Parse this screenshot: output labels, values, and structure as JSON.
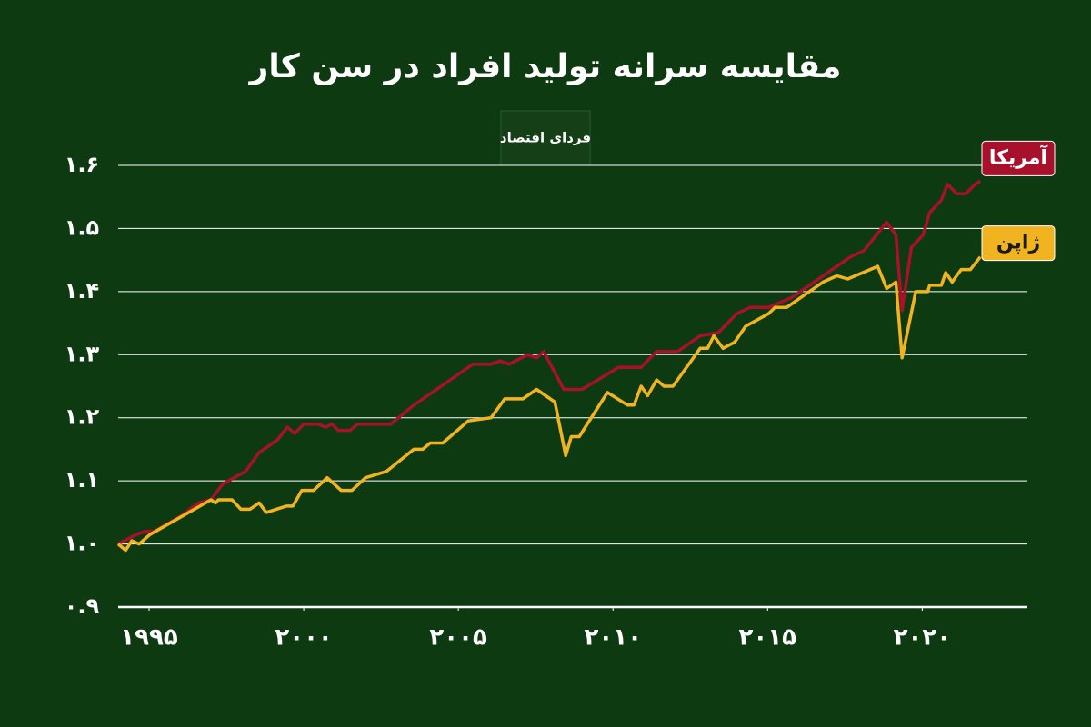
{
  "chart_data": {
    "type": "line",
    "title": "مقایسه سرانه تولید افراد در سن کار",
    "logo": "فردای اقتصاد",
    "xlim": [
      1994,
      2023.4
    ],
    "xticks": [
      {
        "value": 1995,
        "label": "۱۹۹۵"
      },
      {
        "value": 2000,
        "label": "۲۰۰۰"
      },
      {
        "value": 2005,
        "label": "۲۰۰۵"
      },
      {
        "value": 2010,
        "label": "۲۰۱۰"
      },
      {
        "value": 2015,
        "label": "۲۰۱۵"
      },
      {
        "value": 2020,
        "label": "۲۰۲۰"
      }
    ],
    "ylim": [
      0.9,
      1.6
    ],
    "yticks": [
      {
        "value": 0.9,
        "label": "۰.۹"
      },
      {
        "value": 1.0,
        "label": "۱.۰"
      },
      {
        "value": 1.1,
        "label": "۱.۱"
      },
      {
        "value": 1.2,
        "label": "۱.۲"
      },
      {
        "value": 1.3,
        "label": "۱.۳"
      },
      {
        "value": 1.4,
        "label": "۱.۴"
      },
      {
        "value": 1.5,
        "label": "۱.۵"
      },
      {
        "value": 1.6,
        "label": "۱.۶"
      }
    ],
    "grid": true,
    "series": [
      {
        "name": "آمریکا",
        "color": "#a8112b",
        "x": [
          1994.0,
          1994.59,
          1994.88,
          1995.18,
          1996.06,
          1996.59,
          1997.0,
          1997.38,
          1998.12,
          1998.56,
          1999.15,
          1999.47,
          1999.71,
          2000.0,
          2000.47,
          2000.71,
          2000.91,
          2001.12,
          2001.5,
          2001.74,
          2002.82,
          2003.56,
          2004.74,
          2005.47,
          2006.06,
          2006.35,
          2006.65,
          2007.24,
          2007.53,
          2007.76,
          2008.41,
          2009.0,
          2010.18,
          2010.91,
          2011.41,
          2012.09,
          2012.38,
          2012.82,
          2013.41,
          2014.0,
          2014.44,
          2015.03,
          2015.76,
          2016.65,
          2017.09,
          2017.68,
          2018.12,
          2018.85,
          2019.15,
          2019.35,
          2019.65,
          2020.03,
          2020.24,
          2020.62,
          2020.82,
          2021.12,
          2021.41,
          2021.71,
          2021.88
        ],
        "values": [
          1.0,
          1.015,
          1.02,
          1.02,
          1.045,
          1.065,
          1.07,
          1.095,
          1.115,
          1.145,
          1.165,
          1.185,
          1.175,
          1.19,
          1.19,
          1.185,
          1.19,
          1.18,
          1.18,
          1.19,
          1.19,
          1.22,
          1.26,
          1.285,
          1.285,
          1.29,
          1.285,
          1.3,
          1.295,
          1.305,
          1.245,
          1.245,
          1.28,
          1.28,
          1.305,
          1.305,
          1.315,
          1.33,
          1.335,
          1.365,
          1.375,
          1.375,
          1.39,
          1.42,
          1.435,
          1.455,
          1.465,
          1.51,
          1.49,
          1.37,
          1.47,
          1.49,
          1.525,
          1.545,
          1.57,
          1.555,
          1.555,
          1.57,
          1.575
        ]
      },
      {
        "name": "ژاپن",
        "color": "#f2b320",
        "x": [
          1994.0,
          1994.24,
          1994.44,
          1994.68,
          1995.03,
          1997.0,
          1997.15,
          1997.24,
          1997.68,
          1997.97,
          1998.26,
          1998.56,
          1998.79,
          1999.44,
          1999.65,
          1999.94,
          2000.32,
          2000.76,
          2001.21,
          2001.56,
          2002.0,
          2002.68,
          2003.56,
          2003.85,
          2004.09,
          2004.5,
          2005.32,
          2006.06,
          2006.5,
          2007.09,
          2007.53,
          2008.12,
          2008.47,
          2008.65,
          2008.91,
          2009.82,
          2010.47,
          2010.68,
          2010.91,
          2011.12,
          2011.41,
          2011.65,
          2011.94,
          2012.82,
          2013.06,
          2013.26,
          2013.56,
          2013.94,
          2014.29,
          2015.03,
          2015.24,
          2015.62,
          2016.79,
          2017.24,
          2017.59,
          2018.56,
          2018.85,
          2019.15,
          2019.35,
          2019.79,
          2020.18,
          2020.24,
          2020.62,
          2020.76,
          2020.97,
          2021.26,
          2021.56,
          2021.88
        ],
        "values": [
          1.0,
          0.99,
          1.005,
          1.0,
          1.015,
          1.07,
          1.065,
          1.07,
          1.07,
          1.055,
          1.055,
          1.065,
          1.05,
          1.06,
          1.06,
          1.085,
          1.085,
          1.105,
          1.085,
          1.085,
          1.105,
          1.115,
          1.15,
          1.15,
          1.16,
          1.16,
          1.195,
          1.2,
          1.23,
          1.23,
          1.245,
          1.225,
          1.14,
          1.17,
          1.17,
          1.24,
          1.22,
          1.22,
          1.25,
          1.235,
          1.26,
          1.25,
          1.25,
          1.31,
          1.31,
          1.33,
          1.31,
          1.32,
          1.345,
          1.365,
          1.375,
          1.375,
          1.415,
          1.425,
          1.42,
          1.44,
          1.405,
          1.415,
          1.295,
          1.4,
          1.4,
          1.41,
          1.41,
          1.43,
          1.415,
          1.435,
          1.435,
          1.455
        ]
      }
    ]
  }
}
